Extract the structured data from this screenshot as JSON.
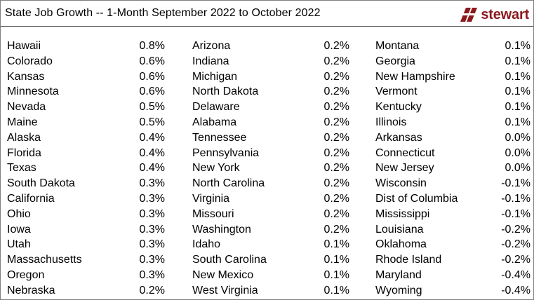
{
  "title": "State Job Growth -- 1-Month September 2022 to October 2022",
  "logo": {
    "text": "stewart",
    "icon": "stewart-logo-mark",
    "color": "#8b1a1e"
  },
  "columns": [
    {
      "rows": [
        {
          "state": "Hawaii",
          "value": "0.8%"
        },
        {
          "state": "Colorado",
          "value": "0.6%"
        },
        {
          "state": "Kansas",
          "value": "0.6%"
        },
        {
          "state": "Minnesota",
          "value": "0.6%"
        },
        {
          "state": "Nevada",
          "value": "0.5%"
        },
        {
          "state": "Maine",
          "value": "0.5%"
        },
        {
          "state": "Alaska",
          "value": "0.4%"
        },
        {
          "state": "Florida",
          "value": "0.4%"
        },
        {
          "state": "Texas",
          "value": "0.4%"
        },
        {
          "state": "South Dakota",
          "value": "0.3%"
        },
        {
          "state": "California",
          "value": "0.3%"
        },
        {
          "state": "Ohio",
          "value": "0.3%"
        },
        {
          "state": "Iowa",
          "value": "0.3%"
        },
        {
          "state": "Utah",
          "value": "0.3%"
        },
        {
          "state": "Massachusetts",
          "value": "0.3%"
        },
        {
          "state": "Oregon",
          "value": "0.3%"
        },
        {
          "state": "Nebraska",
          "value": "0.2%"
        }
      ]
    },
    {
      "rows": [
        {
          "state": "Arizona",
          "value": "0.2%"
        },
        {
          "state": "Indiana",
          "value": "0.2%"
        },
        {
          "state": "Michigan",
          "value": "0.2%"
        },
        {
          "state": "North Dakota",
          "value": "0.2%"
        },
        {
          "state": "Delaware",
          "value": "0.2%"
        },
        {
          "state": "Alabama",
          "value": "0.2%"
        },
        {
          "state": "Tennessee",
          "value": "0.2%"
        },
        {
          "state": "Pennsylvania",
          "value": "0.2%"
        },
        {
          "state": "New York",
          "value": "0.2%"
        },
        {
          "state": "North Carolina",
          "value": "0.2%"
        },
        {
          "state": "Virginia",
          "value": "0.2%"
        },
        {
          "state": "Missouri",
          "value": "0.2%"
        },
        {
          "state": "Washington",
          "value": "0.2%"
        },
        {
          "state": "Idaho",
          "value": "0.1%"
        },
        {
          "state": "South Carolina",
          "value": "0.1%"
        },
        {
          "state": "New Mexico",
          "value": "0.1%"
        },
        {
          "state": "West Virginia",
          "value": "0.1%"
        }
      ]
    },
    {
      "rows": [
        {
          "state": "Montana",
          "value": "0.1%"
        },
        {
          "state": "Georgia",
          "value": "0.1%"
        },
        {
          "state": "New Hampshire",
          "value": "0.1%"
        },
        {
          "state": "Vermont",
          "value": "0.1%"
        },
        {
          "state": "Kentucky",
          "value": "0.1%"
        },
        {
          "state": "Illinois",
          "value": "0.1%"
        },
        {
          "state": "Arkansas",
          "value": "0.0%"
        },
        {
          "state": "Connecticut",
          "value": "0.0%"
        },
        {
          "state": "New Jersey",
          "value": "0.0%"
        },
        {
          "state": "Wisconsin",
          "value": "-0.1%"
        },
        {
          "state": "Dist of Columbia",
          "value": "-0.1%"
        },
        {
          "state": "Mississippi",
          "value": "-0.1%"
        },
        {
          "state": "Louisiana",
          "value": "-0.2%"
        },
        {
          "state": "Oklahoma",
          "value": "-0.2%"
        },
        {
          "state": "Rhode Island",
          "value": "-0.2%"
        },
        {
          "state": "Maryland",
          "value": "-0.4%"
        },
        {
          "state": "Wyoming",
          "value": "-0.4%"
        }
      ]
    }
  ]
}
